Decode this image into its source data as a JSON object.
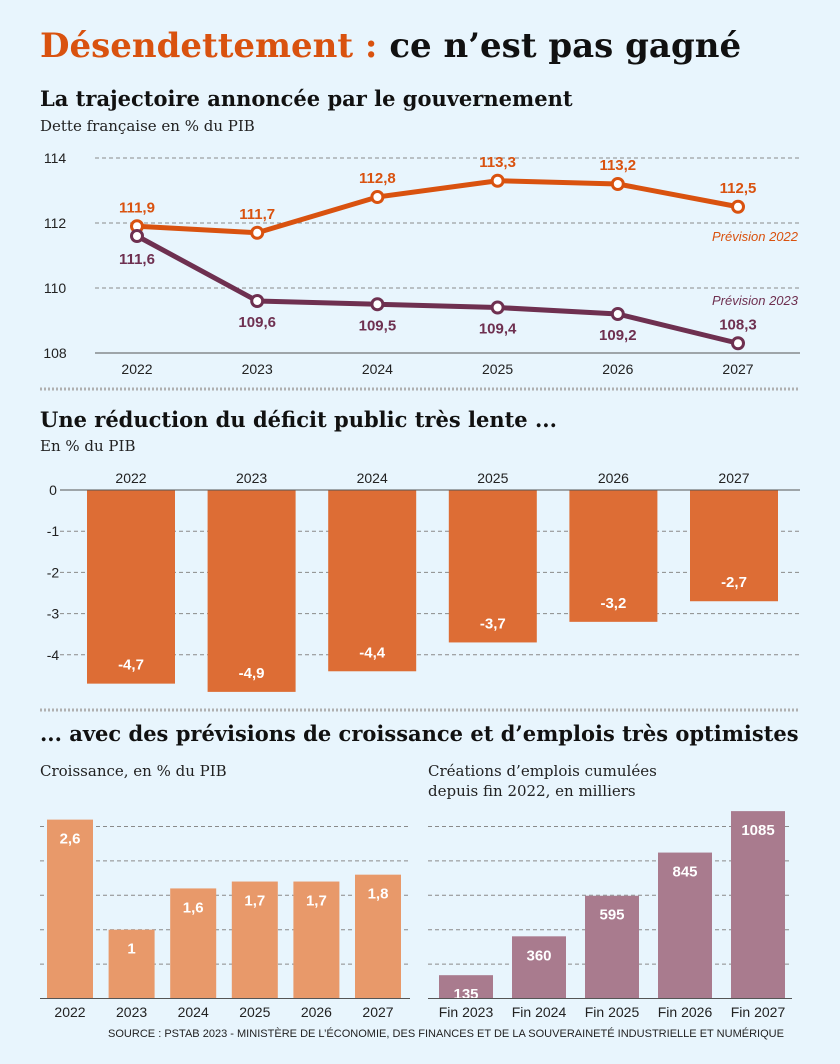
{
  "title_accent": "Désendettement :",
  "title_rest": " ce n’est pas gagné",
  "source": "SOURCE : PSTAB 2023 - MINISTÈRE DE L’ÉCONOMIE, DES FINANCES ET DE LA SOUVERAINETÉ INDUSTRIELLE ET NUMÉRIQUE",
  "colors": {
    "background": "#e8f5fd",
    "accent": "#d9520f",
    "purple": "#6e3050",
    "deficit": "#dd6d35",
    "growth": "#e8996a",
    "jobs": "#a97b8e"
  },
  "section3_title": "... avec des prévisions de croissance et d’emplois très optimistes",
  "chart_data": [
    {
      "type": "line",
      "title": "La trajectoire annoncée par le gouvernement",
      "subtitle": "Dette française en % du PIB",
      "x": [
        "2022",
        "2023",
        "2024",
        "2025",
        "2026",
        "2027"
      ],
      "yticks": [
        "108",
        "110",
        "112",
        "114"
      ],
      "ylim": [
        108,
        114
      ],
      "grid": true,
      "series": [
        {
          "name": "Prévision 2022",
          "values": [
            111.9,
            111.7,
            112.8,
            113.3,
            113.2,
            112.5
          ],
          "labels": [
            "111,9",
            "111,7",
            "112,8",
            "113,3",
            "113,2",
            "112,5"
          ],
          "color": "#d9520f"
        },
        {
          "name": "Prévision 2023",
          "values": [
            111.6,
            109.6,
            109.5,
            109.4,
            109.2,
            108.3
          ],
          "labels": [
            "111,6",
            "109,6",
            "109,5",
            "109,4",
            "109,2",
            "108,3"
          ],
          "color": "#6e3050"
        }
      ]
    },
    {
      "type": "bar",
      "title": "Une réduction du déficit public très lente ...",
      "subtitle": "En % du PIB",
      "categories": [
        "2022",
        "2023",
        "2024",
        "2025",
        "2026",
        "2027"
      ],
      "values": [
        -4.7,
        -4.9,
        -4.4,
        -3.7,
        -3.2,
        -2.7
      ],
      "labels": [
        "-4,7",
        "-4,9",
        "-4,4",
        "-3,7",
        "-3,2",
        "-2,7"
      ],
      "yticks": [
        "0",
        "-1",
        "-2",
        "-3",
        "-4"
      ],
      "ylim": [
        -5,
        0
      ],
      "grid": true
    },
    {
      "type": "bar",
      "subtitle": "Croissance, en % du PIB",
      "categories": [
        "2022",
        "2023",
        "2024",
        "2025",
        "2026",
        "2027"
      ],
      "values": [
        2.6,
        1,
        1.6,
        1.7,
        1.7,
        1.8
      ],
      "labels": [
        "2,6",
        "1",
        "1,6",
        "1,7",
        "1,7",
        "1,8"
      ],
      "ylim": [
        0,
        2.6
      ],
      "grid": true
    },
    {
      "type": "bar",
      "subtitle_line1": "Créations d’emplois cumulées",
      "subtitle_line2": "depuis fin 2022, en milliers",
      "categories": [
        "Fin 2023",
        "Fin 2024",
        "Fin 2025",
        "Fin 2026",
        "Fin 2027"
      ],
      "values": [
        135,
        360,
        595,
        845,
        1085
      ],
      "labels": [
        "135",
        "360",
        "595",
        "845",
        "1085"
      ],
      "ylim": [
        0,
        1085
      ],
      "grid": true
    }
  ]
}
